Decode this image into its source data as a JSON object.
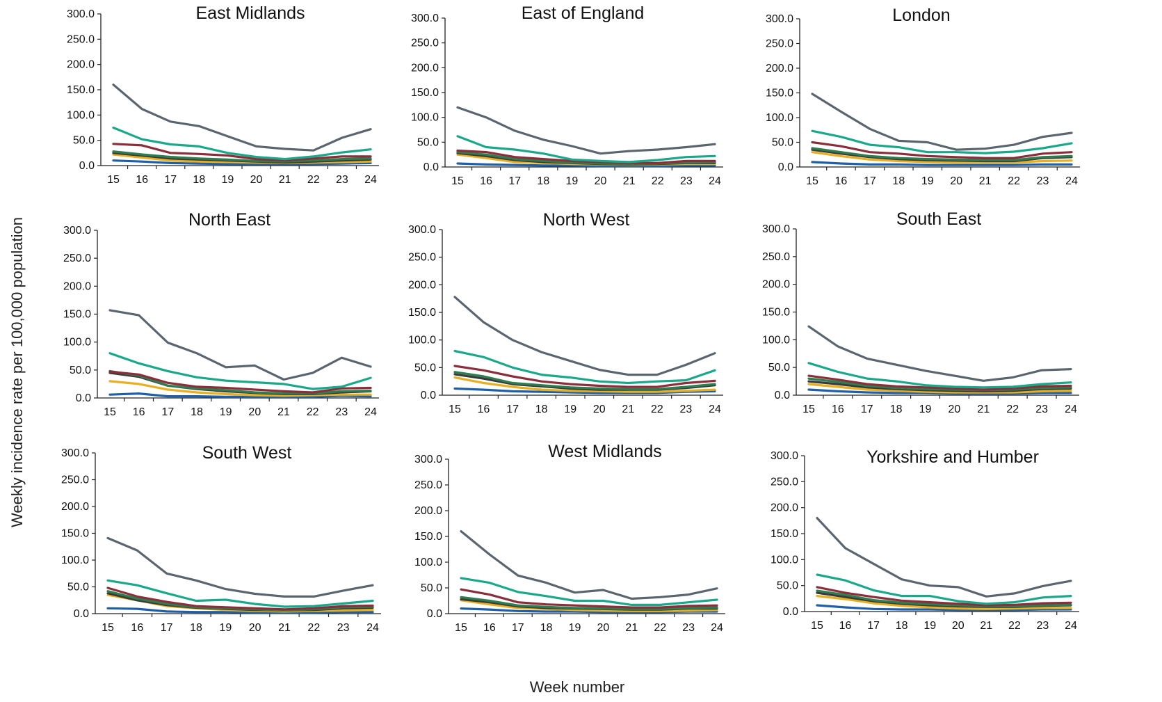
{
  "figure": {
    "ylabel": "Weekly incidence rate per 100,000 population",
    "xlabel": "Week number"
  },
  "chart_data": [
    {
      "type": "line",
      "title": "East Midlands",
      "x": [
        15,
        16,
        17,
        18,
        19,
        20,
        21,
        22,
        23,
        24
      ],
      "y_ticks": [
        "0.0",
        "50.0",
        "100.0",
        "150.0",
        "200.0",
        "250.0",
        "300.0"
      ],
      "ylim": [
        0,
        300
      ],
      "series": [
        {
          "color": "#5a6570",
          "values": [
            160,
            112,
            87,
            78,
            58,
            38,
            33,
            30,
            55,
            72
          ]
        },
        {
          "color": "#1aa88a",
          "values": [
            75,
            52,
            42,
            38,
            25,
            17,
            13,
            18,
            26,
            32
          ]
        },
        {
          "color": "#8b2e3a",
          "values": [
            43,
            40,
            25,
            23,
            20,
            13,
            10,
            14,
            18,
            18
          ]
        },
        {
          "color": "#2e7d4f",
          "values": [
            28,
            22,
            17,
            14,
            12,
            9,
            8,
            10,
            13,
            14
          ]
        },
        {
          "color": "#3a3a3a",
          "values": [
            25,
            20,
            14,
            12,
            10,
            8,
            6,
            8,
            10,
            12
          ]
        },
        {
          "color": "#e8b020",
          "values": [
            22,
            16,
            10,
            8,
            7,
            6,
            5,
            6,
            7,
            8
          ]
        },
        {
          "color": "#1f5fa8",
          "values": [
            10,
            8,
            5,
            4,
            3,
            3,
            3,
            3,
            4,
            5
          ]
        }
      ]
    },
    {
      "type": "line",
      "title": "East of England",
      "x": [
        15,
        16,
        17,
        18,
        19,
        20,
        21,
        22,
        23,
        24
      ],
      "y_ticks": [
        "0.0",
        "50.0",
        "100.0",
        "150.0",
        "200.0",
        "250.0",
        "300.0"
      ],
      "ylim": [
        0,
        300
      ],
      "series": [
        {
          "color": "#5a6570",
          "values": [
            120,
            100,
            73,
            55,
            42,
            27,
            32,
            35,
            40,
            46
          ]
        },
        {
          "color": "#1aa88a",
          "values": [
            62,
            40,
            35,
            27,
            15,
            12,
            10,
            14,
            20,
            22
          ]
        },
        {
          "color": "#8b2e3a",
          "values": [
            33,
            30,
            20,
            16,
            12,
            10,
            8,
            8,
            12,
            12
          ]
        },
        {
          "color": "#2e7d4f",
          "values": [
            30,
            25,
            16,
            12,
            9,
            7,
            6,
            7,
            9,
            10
          ]
        },
        {
          "color": "#3a3a3a",
          "values": [
            28,
            22,
            14,
            10,
            8,
            6,
            5,
            6,
            8,
            8
          ]
        },
        {
          "color": "#e8b020",
          "values": [
            25,
            18,
            10,
            8,
            6,
            5,
            4,
            5,
            6,
            6
          ]
        },
        {
          "color": "#1f5fa8",
          "values": [
            7,
            5,
            4,
            3,
            3,
            2,
            2,
            2,
            3,
            3
          ]
        }
      ]
    },
    {
      "type": "line",
      "title": "London",
      "x": [
        15,
        16,
        17,
        18,
        19,
        20,
        21,
        22,
        23,
        24
      ],
      "y_ticks": [
        "0.0",
        "50.0",
        "100.0",
        "150.0",
        "200.0",
        "250.0",
        "300.0"
      ],
      "ylim": [
        0,
        300
      ],
      "series": [
        {
          "color": "#5a6570",
          "values": [
            148,
            112,
            77,
            53,
            50,
            35,
            37,
            45,
            61,
            69
          ]
        },
        {
          "color": "#1aa88a",
          "values": [
            73,
            61,
            45,
            40,
            30,
            30,
            28,
            31,
            38,
            48
          ]
        },
        {
          "color": "#8b2e3a",
          "values": [
            50,
            42,
            30,
            27,
            22,
            20,
            18,
            18,
            27,
            30
          ]
        },
        {
          "color": "#2e7d4f",
          "values": [
            38,
            30,
            22,
            18,
            16,
            15,
            14,
            14,
            20,
            22
          ]
        },
        {
          "color": "#3a3a3a",
          "values": [
            35,
            27,
            20,
            16,
            14,
            13,
            12,
            12,
            18,
            20
          ]
        },
        {
          "color": "#e8b020",
          "values": [
            30,
            22,
            15,
            12,
            10,
            9,
            9,
            9,
            12,
            13
          ]
        },
        {
          "color": "#1f5fa8",
          "values": [
            10,
            7,
            5,
            5,
            4,
            4,
            4,
            4,
            5,
            5
          ]
        }
      ]
    },
    {
      "type": "line",
      "title": "North East",
      "x": [
        15,
        16,
        17,
        18,
        19,
        20,
        21,
        22,
        23,
        24
      ],
      "y_ticks": [
        "0.0",
        "50.0",
        "100.0",
        "150.0",
        "200.0",
        "250.0",
        "300.0"
      ],
      "ylim": [
        0,
        300
      ],
      "series": [
        {
          "color": "#5a6570",
          "values": [
            157,
            148,
            99,
            80,
            55,
            58,
            33,
            45,
            72,
            56
          ]
        },
        {
          "color": "#1aa88a",
          "values": [
            80,
            62,
            48,
            37,
            31,
            28,
            25,
            16,
            20,
            36
          ]
        },
        {
          "color": "#8b2e3a",
          "values": [
            47,
            42,
            27,
            20,
            18,
            15,
            12,
            10,
            17,
            18
          ]
        },
        {
          "color": "#2e7d4f",
          "values": [
            48,
            40,
            22,
            17,
            14,
            10,
            8,
            8,
            12,
            13
          ]
        },
        {
          "color": "#3a3a3a",
          "values": [
            45,
            38,
            22,
            16,
            12,
            9,
            7,
            7,
            10,
            12
          ]
        },
        {
          "color": "#e8b020",
          "values": [
            30,
            25,
            15,
            10,
            7,
            5,
            4,
            5,
            6,
            6
          ]
        },
        {
          "color": "#1f5fa8",
          "values": [
            6,
            8,
            3,
            3,
            2,
            2,
            2,
            2,
            4,
            3
          ]
        }
      ]
    },
    {
      "type": "line",
      "title": "North West",
      "x": [
        15,
        16,
        17,
        18,
        19,
        20,
        21,
        22,
        23,
        24
      ],
      "y_ticks": [
        "0.0",
        "50.0",
        "100.0",
        "150.0",
        "200.0",
        "250.0",
        "300.0"
      ],
      "ylim": [
        0,
        300
      ],
      "series": [
        {
          "color": "#5a6570",
          "values": [
            178,
            132,
            100,
            78,
            62,
            46,
            37,
            37,
            55,
            76
          ]
        },
        {
          "color": "#1aa88a",
          "values": [
            80,
            69,
            50,
            37,
            32,
            25,
            22,
            25,
            27,
            45
          ]
        },
        {
          "color": "#8b2e3a",
          "values": [
            53,
            45,
            34,
            25,
            20,
            17,
            15,
            15,
            22,
            26
          ]
        },
        {
          "color": "#2e7d4f",
          "values": [
            42,
            34,
            22,
            18,
            14,
            12,
            11,
            11,
            15,
            20
          ]
        },
        {
          "color": "#3a3a3a",
          "values": [
            38,
            30,
            20,
            16,
            12,
            10,
            10,
            10,
            13,
            18
          ]
        },
        {
          "color": "#e8b020",
          "values": [
            32,
            22,
            15,
            10,
            8,
            7,
            6,
            6,
            8,
            10
          ]
        },
        {
          "color": "#1f5fa8",
          "values": [
            12,
            10,
            7,
            6,
            5,
            4,
            4,
            4,
            6,
            7
          ]
        }
      ]
    },
    {
      "type": "line",
      "title": "South East",
      "x": [
        15,
        16,
        17,
        18,
        19,
        20,
        21,
        22,
        23,
        24
      ],
      "y_ticks": [
        "0.0",
        "50.0",
        "100.0",
        "150.0",
        "200.0",
        "250.0",
        "300.0"
      ],
      "ylim": [
        0,
        300
      ],
      "series": [
        {
          "color": "#5a6570",
          "values": [
            124,
            88,
            66,
            55,
            44,
            35,
            26,
            32,
            45,
            47
          ]
        },
        {
          "color": "#1aa88a",
          "values": [
            58,
            42,
            30,
            25,
            18,
            15,
            14,
            15,
            20,
            23
          ]
        },
        {
          "color": "#8b2e3a",
          "values": [
            35,
            28,
            20,
            16,
            14,
            12,
            10,
            12,
            16,
            17
          ]
        },
        {
          "color": "#2e7d4f",
          "values": [
            30,
            24,
            17,
            13,
            11,
            10,
            9,
            10,
            13,
            14
          ]
        },
        {
          "color": "#3a3a3a",
          "values": [
            25,
            20,
            14,
            11,
            9,
            8,
            7,
            8,
            11,
            12
          ]
        },
        {
          "color": "#e8b020",
          "values": [
            20,
            15,
            10,
            8,
            6,
            5,
            5,
            5,
            7,
            8
          ]
        },
        {
          "color": "#1f5fa8",
          "values": [
            10,
            7,
            5,
            4,
            4,
            3,
            3,
            3,
            4,
            4
          ]
        }
      ]
    },
    {
      "type": "line",
      "title": "South West",
      "x": [
        15,
        16,
        17,
        18,
        19,
        20,
        21,
        22,
        23,
        24
      ],
      "y_ticks": [
        "0.0",
        "50.0",
        "100.0",
        "150.0",
        "200.0",
        "250.0",
        "300.0"
      ],
      "ylim": [
        0,
        300
      ],
      "series": [
        {
          "color": "#5a6570",
          "values": [
            141,
            118,
            75,
            62,
            46,
            37,
            32,
            32,
            43,
            53
          ]
        },
        {
          "color": "#1aa88a",
          "values": [
            62,
            53,
            38,
            24,
            26,
            18,
            13,
            14,
            19,
            24
          ]
        },
        {
          "color": "#8b2e3a",
          "values": [
            48,
            32,
            22,
            14,
            12,
            10,
            8,
            10,
            14,
            15
          ]
        },
        {
          "color": "#2e7d4f",
          "values": [
            42,
            28,
            18,
            12,
            10,
            8,
            6,
            8,
            12,
            13
          ]
        },
        {
          "color": "#3a3a3a",
          "values": [
            38,
            25,
            16,
            11,
            9,
            7,
            6,
            7,
            10,
            11
          ]
        },
        {
          "color": "#e8b020",
          "values": [
            35,
            25,
            14,
            10,
            7,
            5,
            4,
            5,
            6,
            7
          ]
        },
        {
          "color": "#1f5fa8",
          "values": [
            10,
            9,
            4,
            3,
            3,
            2,
            2,
            2,
            3,
            3
          ]
        }
      ]
    },
    {
      "type": "line",
      "title": "West Midlands",
      "x": [
        15,
        16,
        17,
        18,
        19,
        20,
        21,
        22,
        23,
        24
      ],
      "y_ticks": [
        "0.0",
        "50.0",
        "100.0",
        "150.0",
        "200.0",
        "250.0",
        "300.0"
      ],
      "ylim": [
        0,
        300
      ],
      "series": [
        {
          "color": "#5a6570",
          "values": [
            160,
            115,
            74,
            60,
            41,
            46,
            29,
            32,
            37,
            49
          ]
        },
        {
          "color": "#1aa88a",
          "values": [
            69,
            60,
            42,
            34,
            25,
            25,
            17,
            17,
            22,
            27
          ]
        },
        {
          "color": "#8b2e3a",
          "values": [
            47,
            37,
            22,
            18,
            16,
            14,
            12,
            12,
            15,
            16
          ]
        },
        {
          "color": "#2e7d4f",
          "values": [
            32,
            25,
            16,
            13,
            11,
            10,
            9,
            9,
            11,
            12
          ]
        },
        {
          "color": "#3a3a3a",
          "values": [
            28,
            22,
            14,
            11,
            10,
            9,
            8,
            8,
            10,
            10
          ]
        },
        {
          "color": "#e8b020",
          "values": [
            26,
            18,
            11,
            9,
            7,
            6,
            5,
            5,
            6,
            7
          ]
        },
        {
          "color": "#1f5fa8",
          "values": [
            10,
            8,
            5,
            4,
            4,
            3,
            3,
            3,
            4,
            4
          ]
        }
      ]
    },
    {
      "type": "line",
      "title": "Yorkshire and Humber",
      "x": [
        15,
        16,
        17,
        18,
        19,
        20,
        21,
        22,
        23,
        24
      ],
      "y_ticks": [
        "0.0",
        "50.0",
        "100.0",
        "150.0",
        "200.0",
        "250.0",
        "300.0"
      ],
      "ylim": [
        0,
        300
      ],
      "series": [
        {
          "color": "#5a6570",
          "values": [
            180,
            122,
            92,
            62,
            50,
            47,
            29,
            35,
            49,
            59
          ]
        },
        {
          "color": "#1aa88a",
          "values": [
            71,
            60,
            41,
            30,
            30,
            20,
            15,
            18,
            27,
            30
          ]
        },
        {
          "color": "#8b2e3a",
          "values": [
            47,
            36,
            28,
            21,
            18,
            15,
            12,
            13,
            16,
            17
          ]
        },
        {
          "color": "#2e7d4f",
          "values": [
            40,
            32,
            22,
            17,
            14,
            12,
            10,
            10,
            12,
            13
          ]
        },
        {
          "color": "#3a3a3a",
          "values": [
            36,
            28,
            20,
            15,
            12,
            10,
            9,
            9,
            11,
            12
          ]
        },
        {
          "color": "#e8b020",
          "values": [
            30,
            24,
            16,
            11,
            8,
            6,
            5,
            6,
            7,
            7
          ]
        },
        {
          "color": "#1f5fa8",
          "values": [
            12,
            8,
            5,
            4,
            4,
            3,
            3,
            3,
            4,
            4
          ]
        }
      ]
    }
  ]
}
